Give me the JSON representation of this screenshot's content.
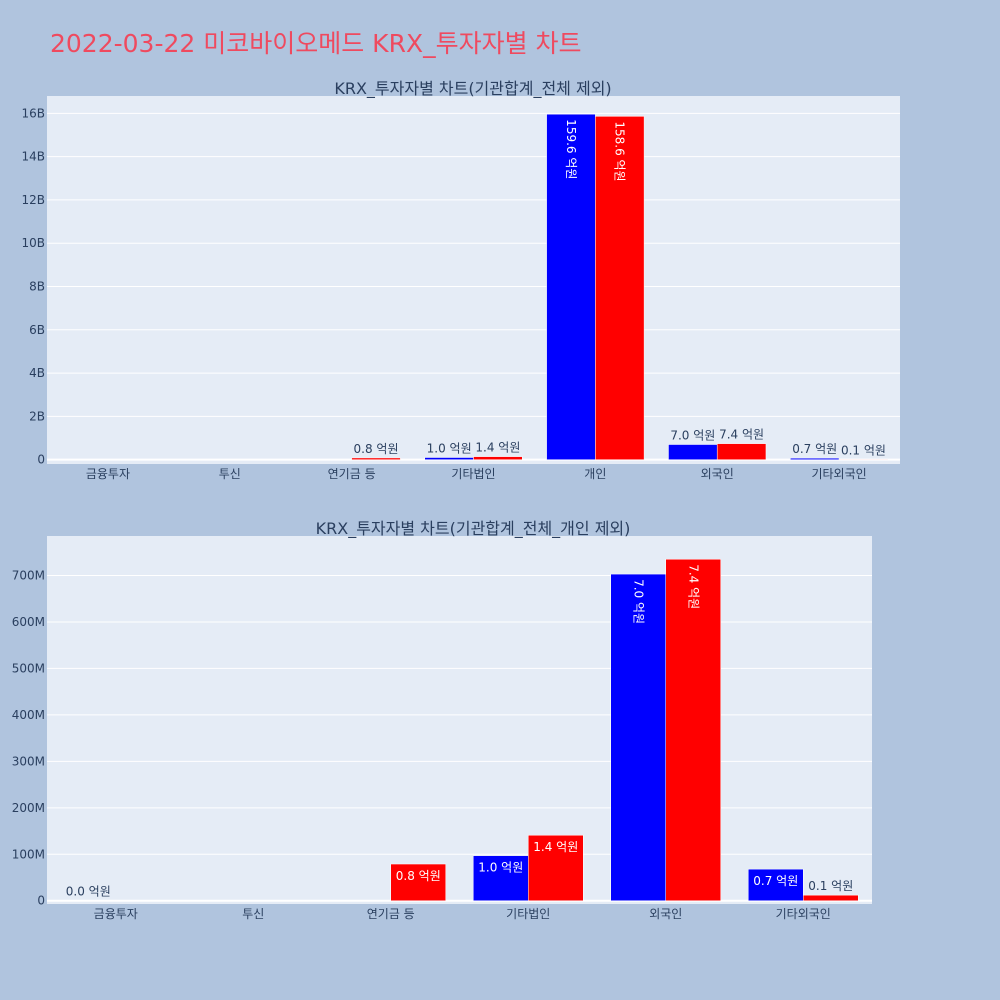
{
  "page_title": "2022-03-22 미코바이오메드 KRX_투자자별 차트",
  "colors": {
    "background": "#b0c4de",
    "plot_bg": "#e5ecf6",
    "buy": "#0000ff",
    "sell": "#ff0000",
    "title": "#ef4a5f",
    "text": "#2a3f5f"
  },
  "chart_data": [
    {
      "type": "bar",
      "title": "KRX_투자자별 차트(기관합계_전체 제외)",
      "categories": [
        "금융투자",
        "투신",
        "연기금 등",
        "기타법인",
        "개인",
        "외국인",
        "기타외국인"
      ],
      "series": [
        {
          "color": "#0000ff",
          "values": [
            0,
            0,
            0,
            100000000,
            15960000000,
            700000000,
            70000000
          ],
          "labels": [
            "",
            "",
            "",
            "1.0 억원",
            "159.6 억원",
            "7.0 억원",
            "0.7 억원"
          ]
        },
        {
          "color": "#ff0000",
          "values": [
            0,
            0,
            80000000,
            140000000,
            15860000000,
            740000000,
            10000000
          ],
          "labels": [
            "",
            "",
            "0.8 억원",
            "1.4 억원",
            "158.6 억원",
            "7.4 억원",
            "0.1 억원"
          ]
        }
      ],
      "yticks": [
        0,
        2000000000,
        4000000000,
        6000000000,
        8000000000,
        10000000000,
        12000000000,
        14000000000,
        16000000000
      ],
      "ytick_labels": [
        "0",
        "2B",
        "4B",
        "6B",
        "8B",
        "10B",
        "12B",
        "14B",
        "16B"
      ],
      "ylim": [
        -200000000,
        16800000000
      ],
      "grid": true
    },
    {
      "type": "bar",
      "title": "KRX_투자자별 차트(기관합계_전체_개인 제외)",
      "categories": [
        "금융투자",
        "투신",
        "연기금 등",
        "기타법인",
        "외국인",
        "기타외국인"
      ],
      "series": [
        {
          "color": "#0000ff",
          "values": [
            0,
            0,
            0,
            97000000,
            703000000,
            68000000
          ],
          "labels": [
            "0.0 억원",
            "",
            "",
            "1.0 억원",
            "7.0 억원",
            "0.7 억원"
          ]
        },
        {
          "color": "#ff0000",
          "values": [
            0,
            0,
            79000000,
            141000000,
            735000000,
            12000000
          ],
          "labels": [
            "",
            "",
            "0.8 억원",
            "1.4 억원",
            "7.4 억원",
            "0.1 억원"
          ]
        }
      ],
      "yticks": [
        0,
        100000000,
        200000000,
        300000000,
        400000000,
        500000000,
        600000000,
        700000000
      ],
      "ytick_labels": [
        "0",
        "100M",
        "200M",
        "300M",
        "400M",
        "500M",
        "600M",
        "700M"
      ],
      "ylim": [
        -7000000,
        785000000
      ],
      "grid": true
    }
  ]
}
